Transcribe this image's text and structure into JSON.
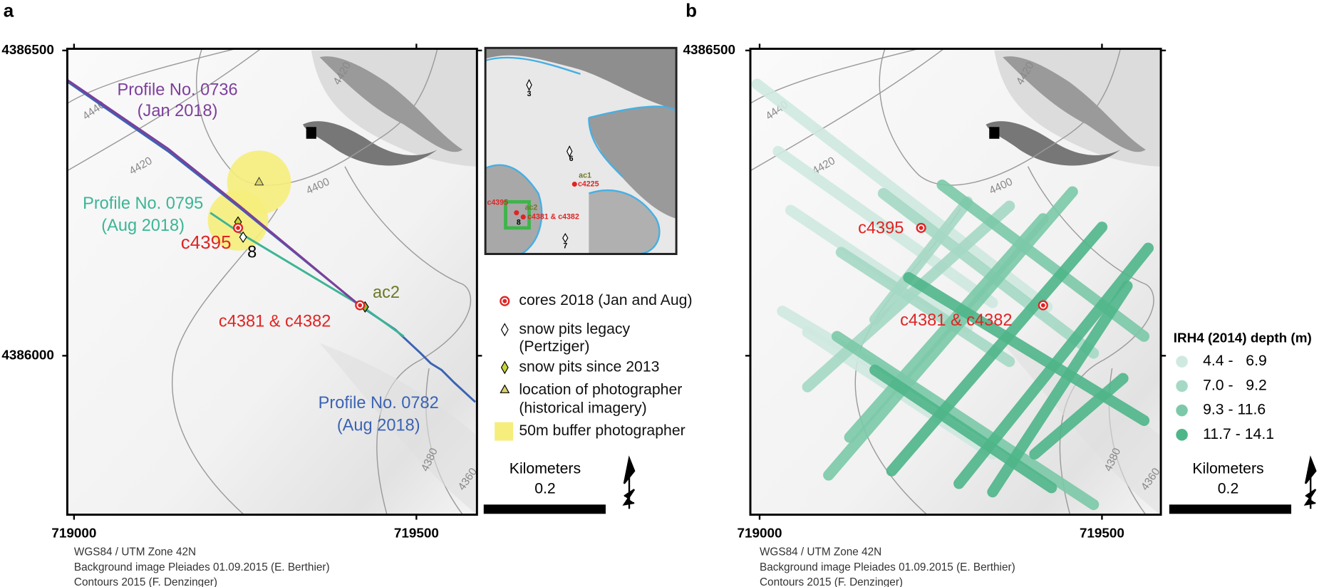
{
  "panel_a": {
    "label": "a",
    "y_ticks": [
      "4386500",
      "4386000"
    ],
    "x_ticks": [
      "719000",
      "719500"
    ],
    "profiles": [
      {
        "name": "Profile No. 0736",
        "date": "(Jan 2018)",
        "color": "#7d3f9b"
      },
      {
        "name": "Profile No. 0795",
        "date": "(Aug 2018)",
        "color": "#3cb595"
      },
      {
        "name": "Profile No. 0782",
        "date": "(Aug 2018)",
        "color": "#3b63b3"
      }
    ],
    "sites": [
      "c4395",
      "8",
      "ac2",
      "c4381 & c4382"
    ],
    "contours": [
      "4440",
      "4420",
      "4420",
      "4400",
      "4380",
      "4360"
    ],
    "inset": [
      "3",
      "6",
      "ac1",
      "c4225",
      "ac2",
      "c4395",
      "8",
      "c4381 & c4382",
      "7"
    ],
    "legend": [
      "cores 2018 (Jan and Aug)",
      "snow pits legacy",
      "(Pertziger)",
      "snow pits since 2013",
      "location of photographer",
      "(historical imagery)",
      "50m buffer photographer"
    ],
    "scale": {
      "title": "Kilometers",
      "value": "0.2"
    },
    "footer": [
      "WGS84 / UTM Zone 42N",
      "Background image Pleiades 01.09.2015 (E. Berthier)",
      "Contours 2015 (F. Denzinger)"
    ]
  },
  "panel_b": {
    "label": "b",
    "y_ticks": [
      "4386500"
    ],
    "x_ticks": [
      "719000",
      "719500"
    ],
    "sites": [
      "c4395",
      "c4381 & c4382"
    ],
    "contours": [
      "4440",
      "4420",
      "4420",
      "4400",
      "4380",
      "4360"
    ],
    "legend_title": "IRH4 (2014) depth (m)",
    "classes": [
      {
        "label": "4.4 -   6.9",
        "color": "#cfe9e0"
      },
      {
        "label": "7.0 -   9.2",
        "color": "#a6d9c5"
      },
      {
        "label": "9.3 - 11.6",
        "color": "#7cc9a9"
      },
      {
        "label": "11.7 - 14.1",
        "color": "#4fb68a"
      }
    ],
    "scale": {
      "title": "Kilometers",
      "value": "0.2"
    },
    "footer": [
      "WGS84 / UTM Zone 42N",
      "Background image Pleiades 01.09.2015 (E. Berthier)",
      "Contours 2015 (F. Denzinger)"
    ]
  }
}
